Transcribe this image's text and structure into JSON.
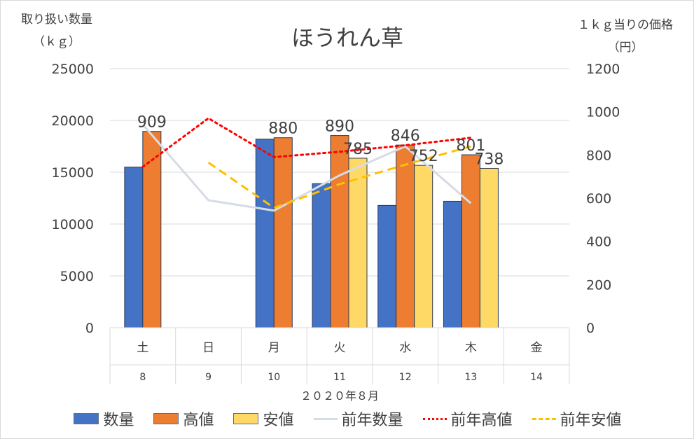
{
  "chart_data": {
    "type": "bar",
    "title": "ほうれん草",
    "left_axis_title": [
      "取り扱い数量",
      "（ｋｇ）"
    ],
    "right_axis_title": [
      "１ｋｇ当りの価格",
      "（円）"
    ],
    "xlabel": "２０２０年８月",
    "weekdays": [
      "土",
      "日",
      "月",
      "火",
      "水",
      "木",
      "金"
    ],
    "days": [
      "8",
      "9",
      "10",
      "11",
      "12",
      "13",
      "14"
    ],
    "left_ticks": [
      "0",
      "5000",
      "10000",
      "15000",
      "20000",
      "25000"
    ],
    "right_ticks": [
      "0",
      "200",
      "400",
      "600",
      "800",
      "1000",
      "1200"
    ],
    "ylim_left": [
      0,
      25000
    ],
    "ylim_right": [
      0,
      1200
    ],
    "grid": true,
    "legend_position": "bottom",
    "series": [
      {
        "name": "数量",
        "kind": "bar",
        "axis": "left",
        "color": "#4472c4",
        "values": [
          15500,
          null,
          18200,
          13900,
          11800,
          12200,
          null
        ]
      },
      {
        "name": "高値",
        "kind": "bar",
        "axis": "right",
        "color": "#ed7d31",
        "values": [
          909,
          null,
          880,
          890,
          846,
          801,
          null
        ],
        "labels": [
          "909",
          "",
          "880",
          "890",
          "846",
          "801",
          ""
        ]
      },
      {
        "name": "安値",
        "kind": "bar",
        "axis": "right",
        "color": "#ffd966",
        "values": [
          null,
          null,
          null,
          785,
          752,
          738,
          null
        ],
        "labels": [
          "",
          "",
          "",
          "785",
          "752",
          "738",
          ""
        ]
      },
      {
        "name": "前年数量",
        "kind": "line",
        "axis": "left",
        "color": "#d6dce5",
        "dash": "solid",
        "values": [
          19600,
          12300,
          11300,
          14700,
          17500,
          12000,
          null
        ]
      },
      {
        "name": "前年高値",
        "kind": "line",
        "axis": "right",
        "color": "#ff0000",
        "dash": "dotted",
        "values": [
          745,
          970,
          790,
          815,
          845,
          880,
          null
        ]
      },
      {
        "name": "前年安値",
        "kind": "line",
        "axis": "right",
        "color": "#ffc000",
        "dash": "dashed",
        "values": [
          null,
          765,
          555,
          665,
          755,
          840,
          null
        ]
      }
    ]
  }
}
